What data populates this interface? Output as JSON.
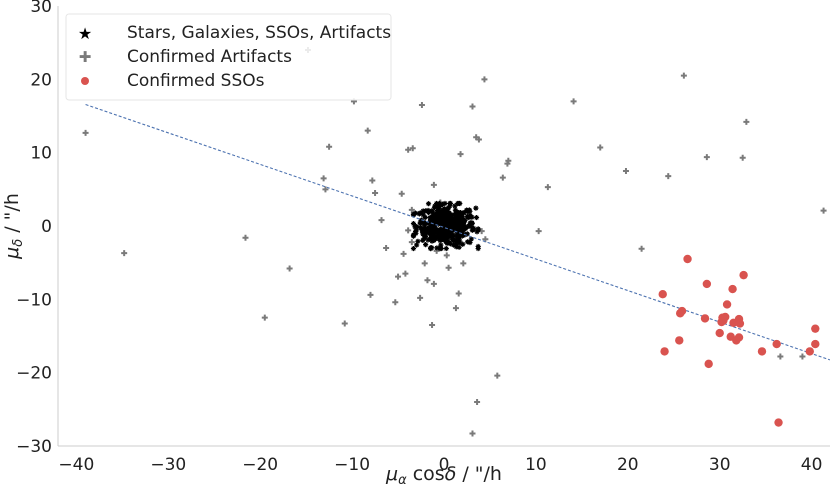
{
  "chart_data": {
    "type": "scatter",
    "xlabel": "μα cosδ / \"/h",
    "ylabel": "μδ / \"/h",
    "xlim": [
      -42,
      42
    ],
    "ylim": [
      -30,
      30
    ],
    "x_ticks": [
      "−40",
      "−30",
      "−20",
      "−10",
      "0",
      "10",
      "20",
      "30",
      "40"
    ],
    "x_tick_values": [
      -40,
      -30,
      -20,
      -10,
      0,
      10,
      20,
      30,
      40
    ],
    "y_ticks": [
      "30",
      "20",
      "10",
      "0",
      "−10",
      "−20",
      "−30"
    ],
    "y_tick_values": [
      30,
      20,
      10,
      0,
      -10,
      -20,
      -30
    ],
    "grid": false,
    "legend_position": "top-left",
    "fit_line": {
      "slope": -0.43,
      "intercept": -0.2,
      "x_range": [
        -39,
        42
      ],
      "color": "#4c72b0",
      "style": "dashed"
    },
    "series": [
      {
        "name": "Stars, Galaxies, SSOs, Artifacts",
        "marker": "star",
        "color": "#000000",
        "cluster": {
          "center": [
            0.2,
            0.0
          ],
          "spread": [
            1.6,
            1.4
          ],
          "count": 450
        }
      },
      {
        "name": "Confirmed Artifacts",
        "marker": "plus",
        "color": "#7a7a7a",
        "points": [
          [
            -39,
            12.7
          ],
          [
            -34.8,
            -3.7
          ],
          [
            -21.6,
            -1.6
          ],
          [
            -19.5,
            -12.5
          ],
          [
            -16.8,
            -5.8
          ],
          [
            -14.8,
            24
          ],
          [
            -13.1,
            6.5
          ],
          [
            -12.9,
            5
          ],
          [
            -12.5,
            10.8
          ],
          [
            -10.8,
            -13.3
          ],
          [
            -9.8,
            17
          ],
          [
            -8.3,
            13
          ],
          [
            -7.5,
            4.5
          ],
          [
            -7.8,
            6.2
          ],
          [
            -6.8,
            0.8
          ],
          [
            -8,
            -9.4
          ],
          [
            -6.3,
            -3
          ],
          [
            -5.3,
            -10.4
          ],
          [
            -5,
            -6.9
          ],
          [
            -4.2,
            -6.5
          ],
          [
            -3.9,
            10.4
          ],
          [
            -3.4,
            10.6
          ],
          [
            -2.6,
            -9.8
          ],
          [
            -2.4,
            16.5
          ],
          [
            -1.8,
            -7.4
          ],
          [
            -2.1,
            -5.1
          ],
          [
            -3.5,
            -2.2
          ],
          [
            -3.5,
            2.2
          ],
          [
            -3.9,
            -0.6
          ],
          [
            -4.6,
            4.4
          ],
          [
            -4.4,
            -3.8
          ],
          [
            -1.1,
            -7.9
          ],
          [
            -1.1,
            5.6
          ],
          [
            -0.4,
            3.2
          ],
          [
            -0.8,
            -3.4
          ],
          [
            0.3,
            -4
          ],
          [
            0.5,
            -5.7
          ],
          [
            1.3,
            -11.2
          ],
          [
            1.6,
            -9.2
          ],
          [
            1.8,
            9.8
          ],
          [
            2.1,
            -5.1
          ],
          [
            -1.3,
            -13.5
          ],
          [
            3.1,
            16.3
          ],
          [
            3.5,
            12.1
          ],
          [
            3.8,
            11.8
          ],
          [
            4.4,
            20
          ],
          [
            4.1,
            -0.7
          ],
          [
            4.5,
            -1.8
          ],
          [
            5.8,
            -20.4
          ],
          [
            6.4,
            6.6
          ],
          [
            6.9,
            8.5
          ],
          [
            7,
            8.9
          ],
          [
            3.6,
            -24
          ],
          [
            3.1,
            -28.3
          ],
          [
            10.3,
            -0.7
          ],
          [
            11.3,
            5.3
          ],
          [
            14.1,
            17
          ],
          [
            17,
            10.7
          ],
          [
            19.8,
            7.5
          ],
          [
            21.5,
            -3.1
          ],
          [
            24.4,
            6.8
          ],
          [
            26.1,
            20.5
          ],
          [
            28.6,
            9.4
          ],
          [
            32.5,
            9.3
          ],
          [
            32.9,
            14.2
          ],
          [
            36.6,
            -17.8
          ],
          [
            39,
            -17.8
          ],
          [
            41.3,
            2.1
          ]
        ]
      },
      {
        "name": "Confirmed SSOs",
        "marker": "circle",
        "color": "#d9534f",
        "points": [
          [
            23.8,
            -9.3
          ],
          [
            24,
            -17.1
          ],
          [
            25.6,
            -15.6
          ],
          [
            25.7,
            -11.9
          ],
          [
            25.9,
            -11.6
          ],
          [
            26.5,
            -4.5
          ],
          [
            28.4,
            -12.6
          ],
          [
            28.6,
            -7.9
          ],
          [
            28.8,
            -18.8
          ],
          [
            30,
            -14.6
          ],
          [
            30.2,
            -13.1
          ],
          [
            30.3,
            -12.5
          ],
          [
            30.4,
            -12.9
          ],
          [
            30.6,
            -12.4
          ],
          [
            30.8,
            -10.7
          ],
          [
            31.2,
            -15.1
          ],
          [
            31.4,
            -8.6
          ],
          [
            31.5,
            -13.2
          ],
          [
            31.8,
            -15.6
          ],
          [
            32.1,
            -12.7
          ],
          [
            32.2,
            -13.3
          ],
          [
            32.1,
            -15.2
          ],
          [
            32.6,
            -6.7
          ],
          [
            34.6,
            -17.1
          ],
          [
            36.2,
            -16.1
          ],
          [
            36.4,
            -26.8
          ],
          [
            39.8,
            -17.1
          ],
          [
            40.4,
            -16.1
          ],
          [
            40.4,
            -14
          ]
        ]
      }
    ]
  }
}
